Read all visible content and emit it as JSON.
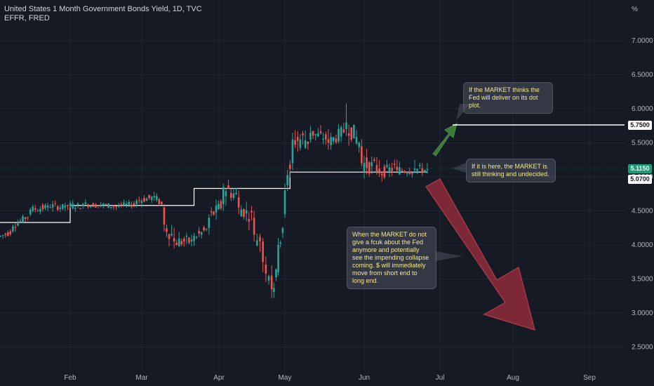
{
  "header": {
    "title": "United States 1 Month Government Bonds Yield, 1D, TVC",
    "subtitle": "EFFR, FRED"
  },
  "axis": {
    "unit_label": "%",
    "y_ticks": [
      "2.5000",
      "3.0000",
      "3.5000",
      "4.0000",
      "4.5000",
      "5.0000",
      "5.5000",
      "6.0000",
      "6.5000",
      "7.0000"
    ],
    "x_ticks": [
      "Feb",
      "Mar",
      "Apr",
      "May",
      "Jun",
      "Jul",
      "Aug",
      "Sep"
    ]
  },
  "price_tags": {
    "target": "5.7500",
    "current": "5.1150",
    "effr": "5.0700"
  },
  "annotations": {
    "top": "If the MARKET thinks the Fed will deliver on its dot plot.",
    "middle": "If it is here, the MARKET is still thinking and undecided.",
    "bottom": "When the MARKET do not give a fcuk about the Fed anymore and potentially see the impending collapse coming. $ will immediately move from short end to long end."
  },
  "colors": {
    "background": "#161a25",
    "grid": "#232632",
    "up": "#26a69a",
    "down": "#ef5350",
    "effr_line": "#ffffff",
    "current_tag": "#1b9e77",
    "note_text": "#f3e98a",
    "bull_arrow": "#3d7a3a",
    "bear_arrow": "#8e2c3a"
  },
  "chart_data": {
    "type": "candlestick",
    "title": "United States 1 Month Government Bonds Yield, 1D, TVC",
    "ylabel": "%",
    "ylim": [
      2.25,
      7.5
    ],
    "x_axis": "months Jan–Sep",
    "series": [
      {
        "name": "United States 1 Month Government Bonds Yield",
        "ohlc_sampled": [
          {
            "x": "Jan 02",
            "o": 4.05,
            "h": 4.12,
            "l": 4.02,
            "c": 4.1
          },
          {
            "x": "Jan 09",
            "o": 4.2,
            "h": 4.3,
            "l": 4.18,
            "c": 4.27
          },
          {
            "x": "Jan 16",
            "o": 4.45,
            "h": 4.55,
            "l": 4.42,
            "c": 4.52
          },
          {
            "x": "Jan 23",
            "o": 4.55,
            "h": 4.62,
            "l": 4.5,
            "c": 4.58
          },
          {
            "x": "Jan 30",
            "o": 4.55,
            "h": 4.62,
            "l": 4.5,
            "c": 4.58
          },
          {
            "x": "Feb 06",
            "o": 4.57,
            "h": 4.62,
            "l": 4.53,
            "c": 4.6
          },
          {
            "x": "Feb 13",
            "o": 4.58,
            "h": 4.63,
            "l": 4.55,
            "c": 4.59
          },
          {
            "x": "Feb 20",
            "o": 4.56,
            "h": 4.62,
            "l": 4.54,
            "c": 4.58
          },
          {
            "x": "Feb 27",
            "o": 4.6,
            "h": 4.68,
            "l": 4.55,
            "c": 4.65
          },
          {
            "x": "Mar 06",
            "o": 4.7,
            "h": 4.78,
            "l": 4.65,
            "c": 4.72
          },
          {
            "x": "Mar 10",
            "o": 4.55,
            "h": 4.6,
            "l": 4.2,
            "c": 4.3
          },
          {
            "x": "Mar 14",
            "o": 4.1,
            "h": 4.25,
            "l": 3.95,
            "c": 4.05
          },
          {
            "x": "Mar 21",
            "o": 4.05,
            "h": 4.15,
            "l": 3.98,
            "c": 4.08
          },
          {
            "x": "Mar 28",
            "o": 4.25,
            "h": 4.45,
            "l": 4.15,
            "c": 4.4
          },
          {
            "x": "Apr 03",
            "o": 4.6,
            "h": 4.9,
            "l": 4.5,
            "c": 4.85
          },
          {
            "x": "Apr 10",
            "o": 4.7,
            "h": 4.8,
            "l": 4.45,
            "c": 4.55
          },
          {
            "x": "Apr 17",
            "o": 4.4,
            "h": 4.5,
            "l": 4.05,
            "c": 4.15
          },
          {
            "x": "Apr 21",
            "o": 4.05,
            "h": 4.1,
            "l": 3.6,
            "c": 3.75
          },
          {
            "x": "Apr 25",
            "o": 3.55,
            "h": 3.7,
            "l": 3.22,
            "c": 3.35
          },
          {
            "x": "Apr 28",
            "o": 3.6,
            "h": 4.1,
            "l": 3.55,
            "c": 4.0
          },
          {
            "x": "May 01",
            "o": 4.45,
            "h": 4.9,
            "l": 4.4,
            "c": 4.8
          },
          {
            "x": "May 04",
            "o": 5.2,
            "h": 5.65,
            "l": 5.1,
            "c": 5.55
          },
          {
            "x": "May 11",
            "o": 5.55,
            "h": 5.75,
            "l": 5.5,
            "c": 5.65
          },
          {
            "x": "May 18",
            "o": 5.55,
            "h": 5.7,
            "l": 5.4,
            "c": 5.5
          },
          {
            "x": "May 25",
            "o": 5.7,
            "h": 6.08,
            "l": 5.6,
            "c": 5.8
          },
          {
            "x": "May 31",
            "o": 5.45,
            "h": 5.55,
            "l": 5.15,
            "c": 5.2
          },
          {
            "x": "Jun 07",
            "o": 5.12,
            "h": 5.25,
            "l": 5.0,
            "c": 5.05
          },
          {
            "x": "Jun 14",
            "o": 5.15,
            "h": 5.25,
            "l": 5.05,
            "c": 5.1
          },
          {
            "x": "Jun 21",
            "o": 5.1,
            "h": 5.25,
            "l": 5.05,
            "c": 5.12
          },
          {
            "x": "Jun 26",
            "o": 5.1,
            "h": 5.2,
            "l": 5.05,
            "c": 5.115
          }
        ]
      },
      {
        "name": "EFFR, FRED",
        "type": "step",
        "points": [
          {
            "x": "Jan 01",
            "y": 4.33
          },
          {
            "x": "Feb 01",
            "y": 4.58
          },
          {
            "x": "Mar 22",
            "y": 4.83
          },
          {
            "x": "May 03",
            "y": 5.07
          },
          {
            "x": "Jun 26",
            "y": 5.07
          }
        ]
      }
    ],
    "horizontal_line": {
      "y": 5.75
    },
    "price_labels": [
      5.75,
      5.115,
      5.07
    ]
  }
}
